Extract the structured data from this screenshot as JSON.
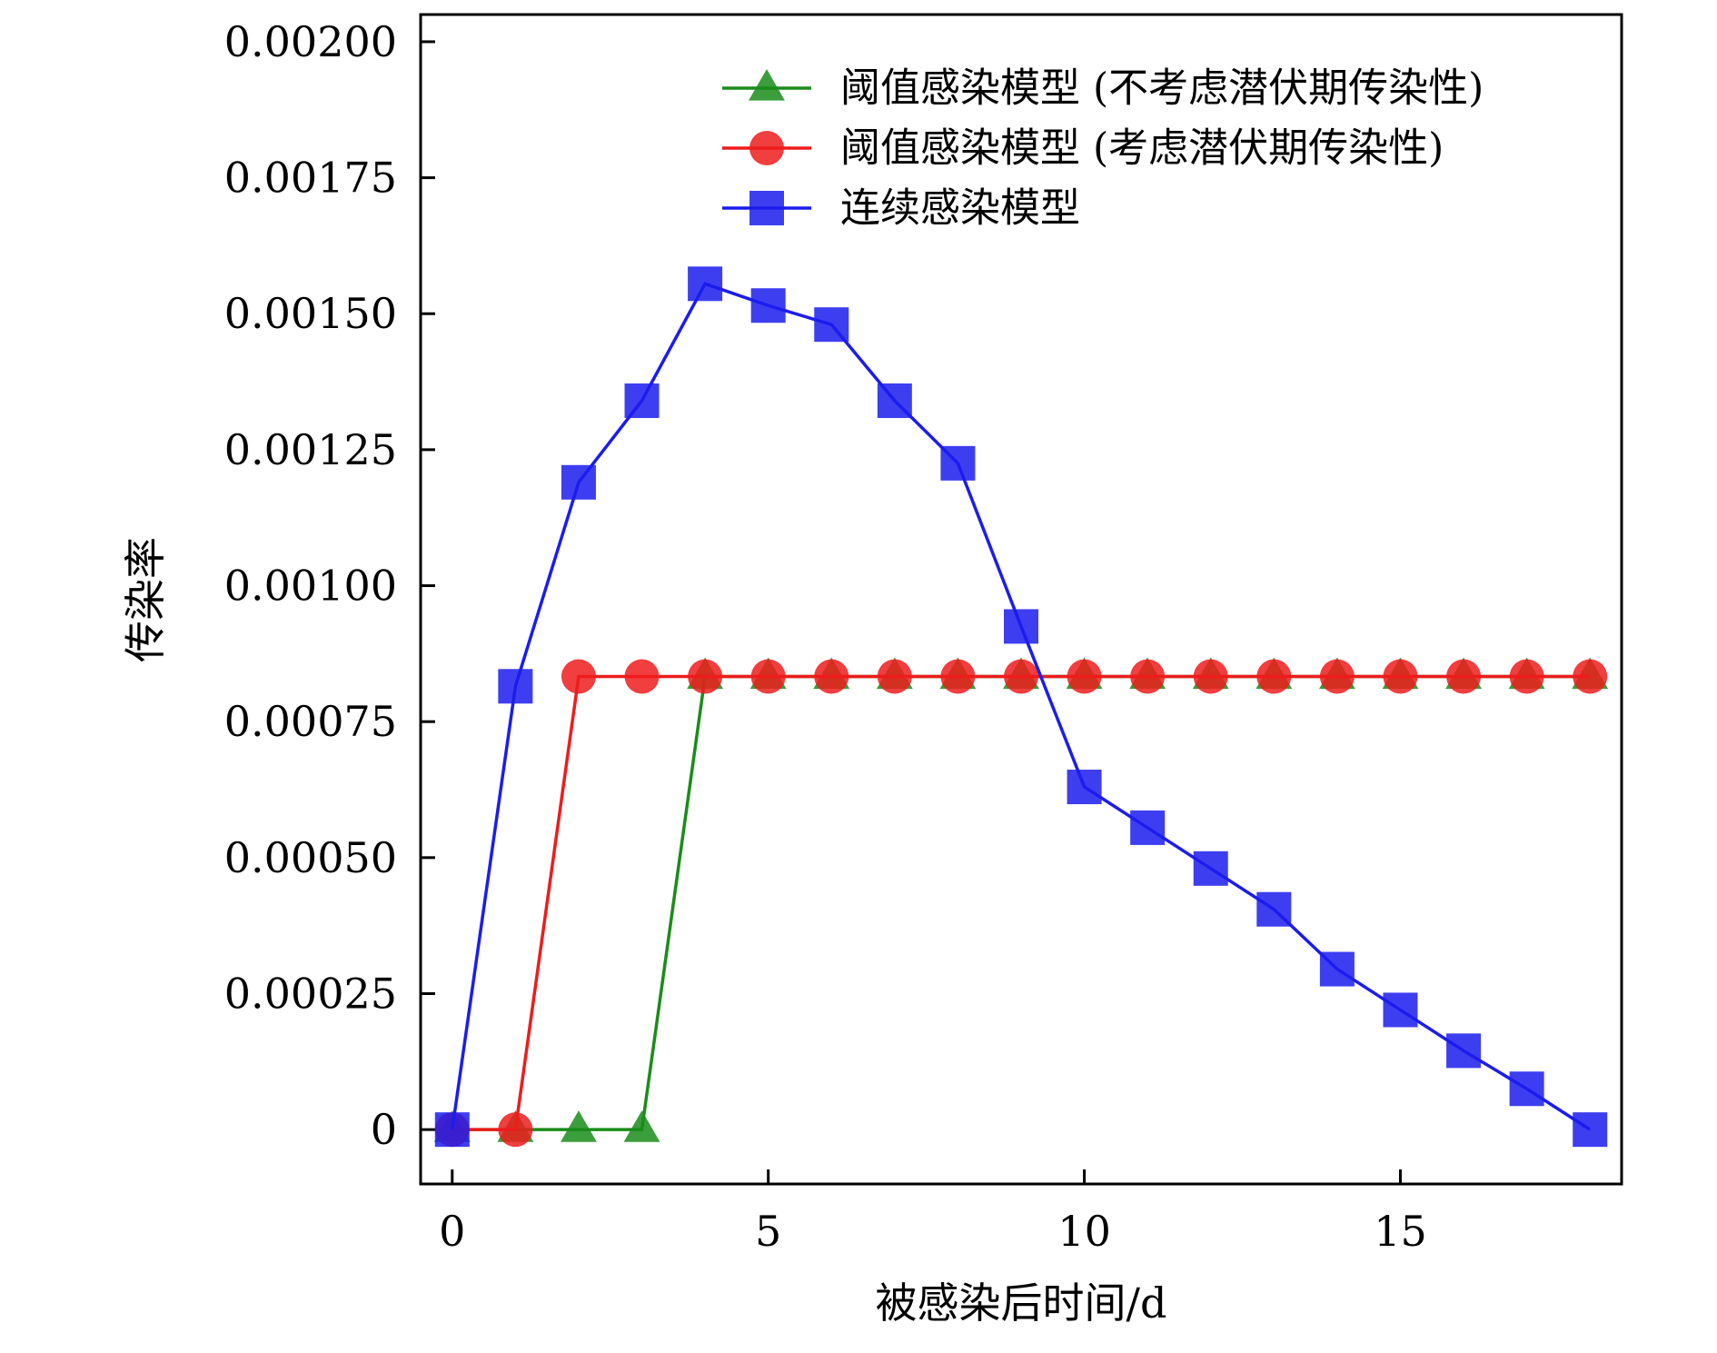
{
  "chart_data": {
    "type": "line",
    "xlabel": "被感染后时间/d",
    "ylabel": "传染率",
    "xlim": [
      -0.5,
      18.5
    ],
    "ylim": [
      -0.0001,
      0.00205
    ],
    "x_ticks": [
      0,
      5,
      10,
      15
    ],
    "x_tick_labels": [
      "0",
      "5",
      "10",
      "15"
    ],
    "y_ticks": [
      0,
      0.00025,
      0.0005,
      0.00075,
      0.001,
      0.00125,
      0.0015,
      0.00175,
      0.002
    ],
    "y_tick_labels": [
      "0",
      "0.00025",
      "0.00050",
      "0.00075",
      "0.00100",
      "0.00125",
      "0.00150",
      "0.00175",
      "0.00200"
    ],
    "grid": false,
    "legend_position": "top-right",
    "x": [
      0,
      1,
      2,
      3,
      4,
      5,
      6,
      7,
      8,
      9,
      10,
      11,
      12,
      13,
      14,
      15,
      16,
      17,
      18
    ],
    "series": [
      {
        "name": "阈值感染模型 (不考虑潜伏期传染性)",
        "color": "#1a8c1a",
        "marker": "triangle",
        "values": [
          0,
          0,
          0,
          0,
          0.000833,
          0.000833,
          0.000833,
          0.000833,
          0.000833,
          0.000833,
          0.000833,
          0.000833,
          0.000833,
          0.000833,
          0.000833,
          0.000833,
          0.000833,
          0.000833,
          0.000833
        ]
      },
      {
        "name": "阈值感染模型 (考虑潜伏期传染性)",
        "color": "#ee1c1c",
        "marker": "circle",
        "values": [
          0,
          0,
          0.000833,
          0.000833,
          0.000833,
          0.000833,
          0.000833,
          0.000833,
          0.000833,
          0.000833,
          0.000833,
          0.000833,
          0.000833,
          0.000833,
          0.000833,
          0.000833,
          0.000833,
          0.000833,
          0.000833
        ]
      },
      {
        "name": "连续感染模型",
        "color": "#1c1cee",
        "marker": "square",
        "values": [
          0,
          0.000815,
          0.00119,
          0.00134,
          0.001555,
          0.001515,
          0.00148,
          0.00134,
          0.001225,
          0.000925,
          0.00063,
          0.000555,
          0.00048,
          0.000405,
          0.000295,
          0.00022,
          0.000145,
          7.5e-05,
          0
        ]
      }
    ]
  }
}
